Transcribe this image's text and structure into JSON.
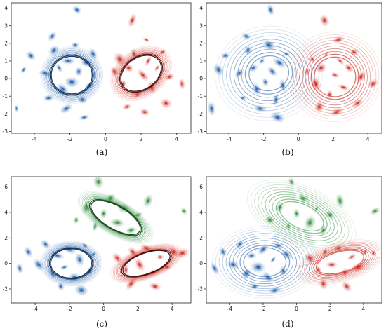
{
  "colors": {
    "blue": "#1f5fa8",
    "red": "#cc2a1e",
    "green": "#2e8b3a",
    "dark": "#0b1d3a"
  },
  "chart_data": [
    {
      "type": "scatter",
      "panel": "a",
      "caption": "(a)",
      "xlim": [
        -5.3,
        4.8
      ],
      "ylim": [
        -3.1,
        4.3
      ],
      "xticks": [
        -4,
        -2,
        0,
        2,
        4
      ],
      "yticks": [
        -3,
        -2,
        -1,
        0,
        1,
        2,
        3,
        4
      ],
      "contours": [
        {
          "color": "blue",
          "cx": -1.9,
          "cy": 0.2,
          "rx": 1.35,
          "ry": 1.25,
          "angle": 0,
          "spread": 0.45,
          "emph": 0.55
        },
        {
          "color": "red",
          "cx": 2.0,
          "cy": 0.3,
          "rx": 1.45,
          "ry": 1.05,
          "angle": 35,
          "spread": 0.45,
          "emph": 0.55
        }
      ],
      "points": [
        {
          "color": "blue",
          "x": -4.6,
          "y": 0.5
        },
        {
          "color": "blue",
          "x": -4.2,
          "y": 1.3
        },
        {
          "color": "blue",
          "x": -3.4,
          "y": 0.3
        },
        {
          "color": "blue",
          "x": -3.2,
          "y": -1.1
        },
        {
          "color": "blue",
          "x": -2.9,
          "y": 1.6
        },
        {
          "color": "blue",
          "x": -2.6,
          "y": 0.6
        },
        {
          "color": "blue",
          "x": -2.4,
          "y": -0.6
        },
        {
          "color": "blue",
          "x": -2.1,
          "y": 1.0
        },
        {
          "color": "blue",
          "x": -1.9,
          "y": -0.2
        },
        {
          "color": "blue",
          "x": -1.7,
          "y": 1.9
        },
        {
          "color": "blue",
          "x": -1.5,
          "y": 0.4
        },
        {
          "color": "blue",
          "x": -1.3,
          "y": -1.2
        },
        {
          "color": "blue",
          "x": -1.1,
          "y": 0.9
        },
        {
          "color": "blue",
          "x": -0.9,
          "y": -0.4
        },
        {
          "color": "blue",
          "x": -0.7,
          "y": 1.4
        },
        {
          "color": "blue",
          "x": -2.2,
          "y": -1.7
        },
        {
          "color": "blue",
          "x": -1.2,
          "y": -2.2
        },
        {
          "color": "blue",
          "x": -3.0,
          "y": 2.4
        },
        {
          "color": "blue",
          "x": -5.0,
          "y": -1.7
        },
        {
          "color": "blue",
          "x": -1.6,
          "y": 3.9
        },
        {
          "color": "red",
          "x": 0.5,
          "y": 0.4
        },
        {
          "color": "red",
          "x": 0.8,
          "y": 1.1
        },
        {
          "color": "red",
          "x": 1.0,
          "y": -0.3
        },
        {
          "color": "red",
          "x": 1.3,
          "y": 0.6
        },
        {
          "color": "red",
          "x": 1.6,
          "y": 1.4
        },
        {
          "color": "red",
          "x": 1.8,
          "y": -0.9
        },
        {
          "color": "red",
          "x": 2.1,
          "y": 0.2
        },
        {
          "color": "red",
          "x": 2.4,
          "y": 1.0
        },
        {
          "color": "red",
          "x": 2.6,
          "y": -0.5
        },
        {
          "color": "red",
          "x": 2.9,
          "y": 0.6
        },
        {
          "color": "red",
          "x": 3.2,
          "y": 1.5
        },
        {
          "color": "red",
          "x": 3.4,
          "y": -1.4
        },
        {
          "color": "red",
          "x": 3.6,
          "y": 0.1
        },
        {
          "color": "red",
          "x": 1.2,
          "y": -1.6
        },
        {
          "color": "red",
          "x": 2.2,
          "y": -1.9
        },
        {
          "color": "red",
          "x": 1.5,
          "y": 3.3
        },
        {
          "color": "red",
          "x": 2.3,
          "y": 2.2
        },
        {
          "color": "red",
          "x": 4.3,
          "y": -0.3
        }
      ]
    },
    {
      "type": "scatter",
      "panel": "b",
      "caption": "(b)",
      "xlim": [
        -5.3,
        4.8
      ],
      "ylim": [
        -3.1,
        4.3
      ],
      "xticks": [
        -4,
        -2,
        0,
        2,
        4
      ],
      "yticks": [
        -3,
        -2,
        -1,
        0,
        1,
        2,
        3,
        4
      ],
      "contours": [
        {
          "color": "blue",
          "cx": -1.7,
          "cy": 0.3,
          "rx": 1.8,
          "ry": 1.55,
          "angle": 10,
          "spread": 1.1,
          "emph": 0.2
        },
        {
          "color": "red",
          "cx": 2.1,
          "cy": 0.1,
          "rx": 1.7,
          "ry": 1.6,
          "angle": 0,
          "spread": 0.9,
          "emph": 0.3
        }
      ],
      "points": [
        {
          "color": "blue",
          "x": -4.6,
          "y": 0.5
        },
        {
          "color": "blue",
          "x": -4.2,
          "y": 1.3
        },
        {
          "color": "blue",
          "x": -3.4,
          "y": 0.3
        },
        {
          "color": "blue",
          "x": -3.2,
          "y": -1.1
        },
        {
          "color": "blue",
          "x": -2.9,
          "y": 1.6
        },
        {
          "color": "blue",
          "x": -2.6,
          "y": 0.6
        },
        {
          "color": "blue",
          "x": -2.4,
          "y": -0.6
        },
        {
          "color": "blue",
          "x": -2.1,
          "y": 1.0
        },
        {
          "color": "blue",
          "x": -1.9,
          "y": -0.2
        },
        {
          "color": "blue",
          "x": -1.7,
          "y": 1.9
        },
        {
          "color": "blue",
          "x": -1.5,
          "y": 0.4
        },
        {
          "color": "blue",
          "x": -1.3,
          "y": -1.2
        },
        {
          "color": "blue",
          "x": -1.1,
          "y": 0.9
        },
        {
          "color": "blue",
          "x": -0.9,
          "y": -0.4
        },
        {
          "color": "blue",
          "x": -0.7,
          "y": 1.4
        },
        {
          "color": "blue",
          "x": -2.2,
          "y": -1.7
        },
        {
          "color": "blue",
          "x": -1.2,
          "y": -2.2
        },
        {
          "color": "blue",
          "x": -3.0,
          "y": 2.4
        },
        {
          "color": "blue",
          "x": -5.0,
          "y": -1.7
        },
        {
          "color": "blue",
          "x": -1.6,
          "y": 3.9
        },
        {
          "color": "red",
          "x": 0.5,
          "y": 0.4
        },
        {
          "color": "red",
          "x": 0.8,
          "y": 1.1
        },
        {
          "color": "red",
          "x": 1.0,
          "y": -0.3
        },
        {
          "color": "red",
          "x": 1.3,
          "y": 0.6
        },
        {
          "color": "red",
          "x": 1.6,
          "y": 1.4
        },
        {
          "color": "red",
          "x": 1.8,
          "y": -0.9
        },
        {
          "color": "red",
          "x": 2.1,
          "y": 0.2
        },
        {
          "color": "red",
          "x": 2.4,
          "y": 1.0
        },
        {
          "color": "red",
          "x": 2.6,
          "y": -0.5
        },
        {
          "color": "red",
          "x": 2.9,
          "y": 0.6
        },
        {
          "color": "red",
          "x": 3.2,
          "y": 1.5
        },
        {
          "color": "red",
          "x": 3.4,
          "y": -1.4
        },
        {
          "color": "red",
          "x": 3.6,
          "y": 0.1
        },
        {
          "color": "red",
          "x": 1.2,
          "y": -1.6
        },
        {
          "color": "red",
          "x": 2.2,
          "y": -1.9
        },
        {
          "color": "red",
          "x": 1.5,
          "y": 3.3
        },
        {
          "color": "red",
          "x": 2.3,
          "y": 2.2
        },
        {
          "color": "red",
          "x": 4.3,
          "y": -0.3
        }
      ]
    },
    {
      "type": "scatter",
      "panel": "c",
      "caption": "(c)",
      "xlim": [
        -5.4,
        5.1
      ],
      "ylim": [
        -3.1,
        6.8
      ],
      "xticks": [
        -4,
        -2,
        0,
        2,
        4
      ],
      "yticks": [
        -2,
        0,
        2,
        4,
        6
      ],
      "contours": [
        {
          "color": "blue",
          "cx": -1.9,
          "cy": 0.0,
          "rx": 1.4,
          "ry": 1.35,
          "angle": 0,
          "spread": 0.45,
          "emph": 0.55
        },
        {
          "color": "green",
          "cx": 0.7,
          "cy": 3.6,
          "rx": 1.9,
          "ry": 1.05,
          "angle": -30,
          "spread": 0.45,
          "emph": 0.55
        },
        {
          "color": "red",
          "cx": 2.5,
          "cy": 0.0,
          "rx": 1.7,
          "ry": 0.95,
          "angle": 20,
          "spread": 0.45,
          "emph": 0.55
        }
      ],
      "points": [
        {
          "color": "blue",
          "x": -4.4,
          "y": 0.9
        },
        {
          "color": "blue",
          "x": -3.8,
          "y": -0.1
        },
        {
          "color": "blue",
          "x": -3.4,
          "y": 1.5
        },
        {
          "color": "blue",
          "x": -3.0,
          "y": -0.8
        },
        {
          "color": "blue",
          "x": -2.7,
          "y": 0.6
        },
        {
          "color": "blue",
          "x": -2.3,
          "y": -0.3
        },
        {
          "color": "blue",
          "x": -2.0,
          "y": 1.1
        },
        {
          "color": "blue",
          "x": -1.7,
          "y": -1.1
        },
        {
          "color": "blue",
          "x": -1.4,
          "y": 0.3
        },
        {
          "color": "blue",
          "x": -1.1,
          "y": 1.4
        },
        {
          "color": "blue",
          "x": -0.8,
          "y": -0.6
        },
        {
          "color": "blue",
          "x": -0.6,
          "y": 0.7
        },
        {
          "color": "blue",
          "x": -2.5,
          "y": -1.8
        },
        {
          "color": "blue",
          "x": -1.3,
          "y": -2.1
        },
        {
          "color": "blue",
          "x": -4.9,
          "y": -0.4
        },
        {
          "color": "green",
          "x": -1.6,
          "y": 3.4
        },
        {
          "color": "green",
          "x": -1.0,
          "y": 4.4
        },
        {
          "color": "green",
          "x": -0.5,
          "y": 2.9
        },
        {
          "color": "green",
          "x": 0.0,
          "y": 3.9
        },
        {
          "color": "green",
          "x": 0.4,
          "y": 5.1
        },
        {
          "color": "green",
          "x": 0.8,
          "y": 3.2
        },
        {
          "color": "green",
          "x": 1.2,
          "y": 4.3
        },
        {
          "color": "green",
          "x": 1.6,
          "y": 2.6
        },
        {
          "color": "green",
          "x": 2.0,
          "y": 3.8
        },
        {
          "color": "green",
          "x": -0.3,
          "y": 6.4
        },
        {
          "color": "green",
          "x": 2.6,
          "y": 4.9
        },
        {
          "color": "green",
          "x": 4.7,
          "y": 4.1
        },
        {
          "color": "red",
          "x": 0.8,
          "y": 0.4
        },
        {
          "color": "red",
          "x": 1.3,
          "y": -0.5
        },
        {
          "color": "red",
          "x": 1.7,
          "y": 0.9
        },
        {
          "color": "red",
          "x": 2.1,
          "y": -0.1
        },
        {
          "color": "red",
          "x": 2.5,
          "y": 1.2
        },
        {
          "color": "red",
          "x": 2.9,
          "y": -0.7
        },
        {
          "color": "red",
          "x": 3.3,
          "y": 0.5
        },
        {
          "color": "red",
          "x": 3.7,
          "y": -0.3
        },
        {
          "color": "red",
          "x": 4.1,
          "y": 0.9
        },
        {
          "color": "red",
          "x": 1.6,
          "y": -1.6
        },
        {
          "color": "red",
          "x": 3.0,
          "y": -1.8
        },
        {
          "color": "red",
          "x": 4.6,
          "y": 0.8
        }
      ]
    },
    {
      "type": "scatter",
      "panel": "d",
      "caption": "(d)",
      "xlim": [
        -5.4,
        5.1
      ],
      "ylim": [
        -3.1,
        6.8
      ],
      "xticks": [
        -4,
        -2,
        0,
        2,
        4
      ],
      "yticks": [
        -2,
        0,
        2,
        4,
        6
      ],
      "contours": [
        {
          "color": "blue",
          "cx": -1.9,
          "cy": 0.1,
          "rx": 1.9,
          "ry": 1.7,
          "angle": 0,
          "spread": 1.0,
          "emph": 0.2
        },
        {
          "color": "green",
          "cx": 0.3,
          "cy": 3.7,
          "rx": 2.1,
          "ry": 1.4,
          "angle": -25,
          "spread": 1.0,
          "emph": 0.2
        },
        {
          "color": "red",
          "cx": 2.6,
          "cy": 0.1,
          "rx": 1.9,
          "ry": 1.05,
          "angle": 15,
          "spread": 0.7,
          "emph": 0.35
        }
      ],
      "points": [
        {
          "color": "blue",
          "x": -4.4,
          "y": 0.9
        },
        {
          "color": "blue",
          "x": -3.8,
          "y": -0.1
        },
        {
          "color": "blue",
          "x": -3.4,
          "y": 1.5
        },
        {
          "color": "blue",
          "x": -3.0,
          "y": -0.8
        },
        {
          "color": "blue",
          "x": -2.7,
          "y": 0.6
        },
        {
          "color": "blue",
          "x": -2.3,
          "y": -0.3
        },
        {
          "color": "blue",
          "x": -2.0,
          "y": 1.1
        },
        {
          "color": "blue",
          "x": -1.7,
          "y": -1.1
        },
        {
          "color": "blue",
          "x": -1.4,
          "y": 0.3
        },
        {
          "color": "blue",
          "x": -1.1,
          "y": 1.4
        },
        {
          "color": "blue",
          "x": -0.8,
          "y": -0.6
        },
        {
          "color": "blue",
          "x": -0.6,
          "y": 0.7
        },
        {
          "color": "blue",
          "x": -2.5,
          "y": -1.8
        },
        {
          "color": "blue",
          "x": -1.3,
          "y": -2.1
        },
        {
          "color": "blue",
          "x": -4.9,
          "y": -0.4
        },
        {
          "color": "green",
          "x": -1.6,
          "y": 3.4
        },
        {
          "color": "green",
          "x": -1.0,
          "y": 4.4
        },
        {
          "color": "green",
          "x": -0.5,
          "y": 2.9
        },
        {
          "color": "green",
          "x": 0.0,
          "y": 3.9
        },
        {
          "color": "green",
          "x": 0.4,
          "y": 5.1
        },
        {
          "color": "green",
          "x": 0.8,
          "y": 3.2
        },
        {
          "color": "green",
          "x": 1.2,
          "y": 4.3
        },
        {
          "color": "green",
          "x": 1.6,
          "y": 2.6
        },
        {
          "color": "green",
          "x": 2.0,
          "y": 3.8
        },
        {
          "color": "green",
          "x": -0.3,
          "y": 6.4
        },
        {
          "color": "green",
          "x": 2.6,
          "y": 4.9
        },
        {
          "color": "green",
          "x": 4.7,
          "y": 4.1
        },
        {
          "color": "red",
          "x": 0.8,
          "y": 0.4
        },
        {
          "color": "red",
          "x": 1.3,
          "y": -0.5
        },
        {
          "color": "red",
          "x": 1.7,
          "y": 0.9
        },
        {
          "color": "red",
          "x": 2.1,
          "y": -0.1
        },
        {
          "color": "red",
          "x": 2.5,
          "y": 1.2
        },
        {
          "color": "red",
          "x": 2.9,
          "y": -0.7
        },
        {
          "color": "red",
          "x": 3.3,
          "y": 0.5
        },
        {
          "color": "red",
          "x": 3.7,
          "y": -0.3
        },
        {
          "color": "red",
          "x": 4.1,
          "y": 0.9
        },
        {
          "color": "red",
          "x": 1.6,
          "y": -1.6
        },
        {
          "color": "red",
          "x": 3.0,
          "y": -1.8
        },
        {
          "color": "red",
          "x": 4.6,
          "y": 0.8
        }
      ]
    }
  ]
}
